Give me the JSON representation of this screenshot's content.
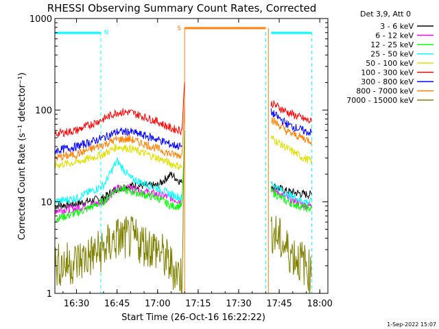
{
  "colors": {
    "background": "#ffffff",
    "frame": "#000000",
    "attenuator_marker": "#00ffff",
    "saa_marker": "#ff8000",
    "night_dashed_line": "#00ffff"
  },
  "chart_data": {
    "type": "line",
    "title": "RHESSI Observing Summary Count Rates, Corrected",
    "xlabel": "Start Time (26-Oct-16 16:22:22)",
    "ylabel": "Corrected Count Rate (s⁻¹ detector⁻¹)",
    "y_scale": "log",
    "ylim": [
      1,
      1000
    ],
    "xlim": [
      "16:22",
      "18:03"
    ],
    "x_ticks": [
      "16:30",
      "16:45",
      "17:00",
      "17:15",
      "17:30",
      "17:45",
      "18:00"
    ],
    "y_ticks": [
      "1",
      "10",
      "100",
      "1000"
    ],
    "legend_title": "Det 3,9, Att 0",
    "legend_position": "right",
    "footer_date": "1-Sep-2022 15:07",
    "flags": [
      {
        "label": "N",
        "color": "#00ffff",
        "x_ranges": [
          [
            "16:22",
            "16:39"
          ],
          [
            "17:42",
            "17:57"
          ]
        ]
      },
      {
        "label": "S",
        "color": "#ff8000",
        "x_ranges": [
          [
            "17:10",
            "17:40"
          ]
        ]
      }
    ],
    "night_boundaries": [
      "16:22",
      "16:39",
      "17:40",
      "17:57"
    ],
    "saa_boundaries": [
      "17:10",
      "17:41"
    ],
    "series": [
      {
        "name": "3 - 6 keV",
        "color": "#000000",
        "points": [
          [
            "16:22",
            9
          ],
          [
            "16:30",
            9.5
          ],
          [
            "16:40",
            11
          ],
          [
            "16:45",
            14
          ],
          [
            "16:50",
            15
          ],
          [
            "17:00",
            15
          ],
          [
            "17:05",
            20
          ],
          [
            "17:09",
            16
          ],
          [
            "17:42",
            15
          ],
          [
            "17:48",
            13
          ],
          [
            "17:55",
            12
          ],
          [
            "17:57",
            12
          ]
        ]
      },
      {
        "name": "6 - 12 keV",
        "color": "#ff00ff",
        "points": [
          [
            "16:22",
            8
          ],
          [
            "16:30",
            8.5
          ],
          [
            "16:40",
            10
          ],
          [
            "16:45",
            14
          ],
          [
            "16:50",
            14
          ],
          [
            "17:00",
            12
          ],
          [
            "17:05",
            11
          ],
          [
            "17:09",
            10
          ],
          [
            "17:42",
            14
          ],
          [
            "17:48",
            11
          ],
          [
            "17:55",
            9
          ],
          [
            "17:57",
            9
          ]
        ]
      },
      {
        "name": "12 - 25 keV",
        "color": "#00ff00",
        "points": [
          [
            "16:22",
            6.5
          ],
          [
            "16:30",
            7.5
          ],
          [
            "16:40",
            10
          ],
          [
            "16:45",
            14
          ],
          [
            "16:50",
            13
          ],
          [
            "17:00",
            11
          ],
          [
            "17:05",
            9
          ],
          [
            "17:09",
            9
          ],
          [
            "17:10",
            50
          ],
          [
            "17:42",
            13
          ],
          [
            "17:48",
            10
          ],
          [
            "17:55",
            8.5
          ],
          [
            "17:57",
            8.5
          ]
        ]
      },
      {
        "name": "25 - 50 keV",
        "color": "#00ffff",
        "points": [
          [
            "16:22",
            10
          ],
          [
            "16:30",
            11
          ],
          [
            "16:40",
            15
          ],
          [
            "16:45",
            28
          ],
          [
            "16:50",
            18
          ],
          [
            "17:00",
            14
          ],
          [
            "17:05",
            12
          ],
          [
            "17:09",
            11
          ],
          [
            "17:42",
            16
          ],
          [
            "17:48",
            12
          ],
          [
            "17:55",
            10
          ],
          [
            "17:57",
            10
          ]
        ]
      },
      {
        "name": "50 - 100 keV",
        "color": "#e0e000",
        "points": [
          [
            "16:22",
            25
          ],
          [
            "16:30",
            27
          ],
          [
            "16:40",
            33
          ],
          [
            "16:45",
            40
          ],
          [
            "16:50",
            38
          ],
          [
            "17:00",
            30
          ],
          [
            "17:05",
            26
          ],
          [
            "17:09",
            24
          ],
          [
            "17:42",
            50
          ],
          [
            "17:48",
            38
          ],
          [
            "17:55",
            29
          ],
          [
            "17:57",
            28
          ]
        ]
      },
      {
        "name": "100 - 300 keV",
        "color": "#ff0000",
        "points": [
          [
            "16:22",
            55
          ],
          [
            "16:30",
            60
          ],
          [
            "16:40",
            80
          ],
          [
            "16:45",
            95
          ],
          [
            "16:50",
            95
          ],
          [
            "17:00",
            75
          ],
          [
            "17:05",
            63
          ],
          [
            "17:09",
            60
          ],
          [
            "17:10",
            200
          ],
          [
            "17:42",
            120
          ],
          [
            "17:48",
            95
          ],
          [
            "17:55",
            78
          ],
          [
            "17:57",
            75
          ]
        ]
      },
      {
        "name": "300 - 800 keV",
        "color": "#0000ff",
        "points": [
          [
            "16:22",
            36
          ],
          [
            "16:30",
            40
          ],
          [
            "16:40",
            50
          ],
          [
            "16:45",
            58
          ],
          [
            "16:50",
            58
          ],
          [
            "17:00",
            48
          ],
          [
            "17:05",
            42
          ],
          [
            "17:09",
            40
          ],
          [
            "17:42",
            95
          ],
          [
            "17:48",
            70
          ],
          [
            "17:55",
            58
          ],
          [
            "17:57",
            57
          ]
        ]
      },
      {
        "name": "800 - 7000 keV",
        "color": "#ff8000",
        "points": [
          [
            "16:22",
            30
          ],
          [
            "16:30",
            33
          ],
          [
            "16:40",
            42
          ],
          [
            "16:45",
            48
          ],
          [
            "16:50",
            48
          ],
          [
            "17:00",
            38
          ],
          [
            "17:05",
            33
          ],
          [
            "17:09",
            32
          ],
          [
            "17:10",
            120
          ],
          [
            "17:42",
            80
          ],
          [
            "17:48",
            58
          ],
          [
            "17:55",
            48
          ],
          [
            "17:57",
            46
          ]
        ]
      },
      {
        "name": "7000 - 15000 keV",
        "color": "#808000",
        "points": [
          [
            "16:22",
            2
          ],
          [
            "16:30",
            2.2
          ],
          [
            "16:40",
            3
          ],
          [
            "16:45",
            4
          ],
          [
            "16:50",
            4
          ],
          [
            "17:00",
            3
          ],
          [
            "17:05",
            2
          ],
          [
            "17:09",
            1.5
          ],
          [
            "17:10",
            60
          ],
          [
            "17:42",
            5
          ],
          [
            "17:48",
            3
          ],
          [
            "17:55",
            2
          ],
          [
            "17:57",
            1.5
          ]
        ]
      }
    ]
  }
}
